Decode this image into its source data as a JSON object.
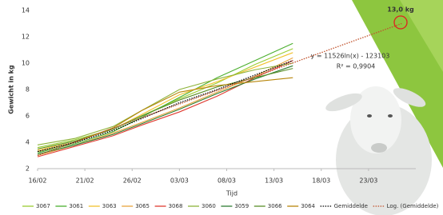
{
  "chart_data": {
    "type": "line",
    "y_label": "Gewicht in kg",
    "x_label": "Tijd",
    "annotations": [
      "y = 11526ln(x) - 123103",
      "R² = 0,9904",
      "13,0 kg"
    ],
    "x": [
      0,
      4,
      8,
      11,
      15,
      19,
      23,
      27
    ],
    "xlim": [
      0,
      40
    ],
    "xticks": [
      {
        "value": 0,
        "label": "16/02"
      },
      {
        "value": 5,
        "label": "21/02"
      },
      {
        "value": 10,
        "label": "26/02"
      },
      {
        "value": 15,
        "label": "03/03"
      },
      {
        "value": 20,
        "label": "08/03"
      },
      {
        "value": 25,
        "label": "13/03"
      },
      {
        "value": 30,
        "label": "18/03"
      },
      {
        "value": 35,
        "label": "23/03"
      }
    ],
    "ylim": [
      2,
      14
    ],
    "yticks": [
      2,
      4,
      6,
      8,
      10,
      12,
      14
    ],
    "grid": false,
    "series": [
      {
        "name": "3067",
        "color": "#9acd32",
        "values": [
          3.6,
          4.2,
          5.0,
          6.0,
          7.3,
          8.5,
          9.9,
          11.1
        ]
      },
      {
        "name": "3061",
        "color": "#4caf2f",
        "values": [
          3.2,
          3.9,
          4.8,
          5.9,
          7.4,
          8.9,
          10.2,
          11.5
        ]
      },
      {
        "name": "3063",
        "color": "#f2c12e",
        "values": [
          3.4,
          4.1,
          5.0,
          6.1,
          7.6,
          8.6,
          9.7,
          10.8
        ]
      },
      {
        "name": "3065",
        "color": "#e8a33d",
        "values": [
          3.0,
          3.8,
          4.7,
          5.5,
          6.6,
          7.8,
          9.0,
          10.4
        ]
      },
      {
        "name": "3068",
        "color": "#e03c31",
        "values": [
          2.9,
          3.7,
          4.5,
          5.3,
          6.3,
          7.5,
          8.9,
          10.2
        ]
      },
      {
        "name": "3060",
        "color": "#8db33a",
        "values": [
          3.8,
          4.3,
          5.2,
          6.4,
          8.0,
          8.8,
          9.5,
          10.0
        ]
      },
      {
        "name": "3059",
        "color": "#2e7d32",
        "values": [
          3.1,
          3.8,
          4.6,
          5.4,
          6.5,
          7.7,
          8.8,
          9.8
        ]
      },
      {
        "name": "3066",
        "color": "#5a8f29",
        "values": [
          3.5,
          4.1,
          5.0,
          6.0,
          7.2,
          8.2,
          8.9,
          9.6
        ]
      },
      {
        "name": "3064",
        "color": "#b8860b",
        "values": [
          3.3,
          4.0,
          5.1,
          6.4,
          7.8,
          8.3,
          8.6,
          8.9
        ]
      },
      {
        "name": "Gemiddelde",
        "color": "#000000",
        "dashed": true,
        "values": [
          3.3,
          4.0,
          4.9,
          5.8,
          7.0,
          8.0,
          9.1,
          10.2
        ]
      },
      {
        "name": "Log. (Gemiddelde)",
        "color": "#c0502a",
        "dashed": true,
        "x": [
          0,
          10,
          20,
          30,
          38.5
        ],
        "values": [
          3.0,
          5.6,
          8.2,
          10.8,
          13.0
        ]
      }
    ]
  }
}
